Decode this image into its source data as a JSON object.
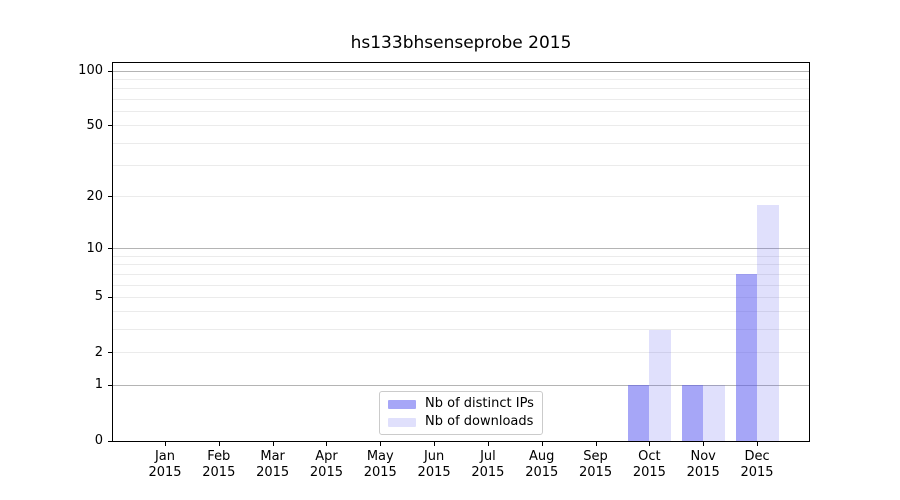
{
  "figure": {
    "title": "hs133bhsenseprobe 2015",
    "background": "#ffffff"
  },
  "chart_data": {
    "type": "bar",
    "title": "hs133bhsenseprobe 2015",
    "categories": [
      "Jan 2015",
      "Feb 2015",
      "Mar 2015",
      "Apr 2015",
      "May 2015",
      "Jun 2015",
      "Jul 2015",
      "Aug 2015",
      "Sep 2015",
      "Oct 2015",
      "Nov 2015",
      "Dec 2015"
    ],
    "x_months": [
      "Jan",
      "Feb",
      "Mar",
      "Apr",
      "May",
      "Jun",
      "Jul",
      "Aug",
      "Sep",
      "Oct",
      "Nov",
      "Dec"
    ],
    "x_year": "2015",
    "series": [
      {
        "name": "Nb of distinct IPs",
        "color": "rgba(85,85,240,0.52)",
        "values": [
          0,
          0,
          0,
          0,
          0,
          0,
          0,
          0,
          0,
          1,
          1,
          7
        ]
      },
      {
        "name": "Nb of downloads",
        "color": "rgba(85,85,240,0.18)",
        "values": [
          0,
          0,
          0,
          0,
          0,
          0,
          0,
          0,
          0,
          3,
          1,
          18
        ]
      }
    ],
    "yscale": "log1p",
    "ylim": [
      0,
      110
    ],
    "ytick_labels": [
      100,
      50,
      20,
      10,
      5,
      2,
      1,
      0
    ],
    "y_major_gridlines": [
      1,
      10,
      100
    ],
    "y_minor_gridlines": [
      2,
      3,
      4,
      5,
      6,
      7,
      8,
      9,
      20,
      30,
      40,
      50,
      60,
      70,
      80,
      90
    ],
    "grid": true,
    "legend_position": "lower center"
  },
  "legend": {
    "items": [
      {
        "label": "Nb of distinct IPs",
        "color": "rgba(85,85,240,0.52)"
      },
      {
        "label": "Nb of downloads",
        "color": "rgba(85,85,240,0.18)"
      }
    ]
  },
  "colors": {
    "bar_ips": "#a9a9f6",
    "bar_downloads": "#dcdcfa",
    "major_gridline": "#b4b4b4",
    "minor_gridline": "#ebebeb",
    "spine": "#000000",
    "text": "#000000",
    "legend_border": "#cbcbcb"
  }
}
